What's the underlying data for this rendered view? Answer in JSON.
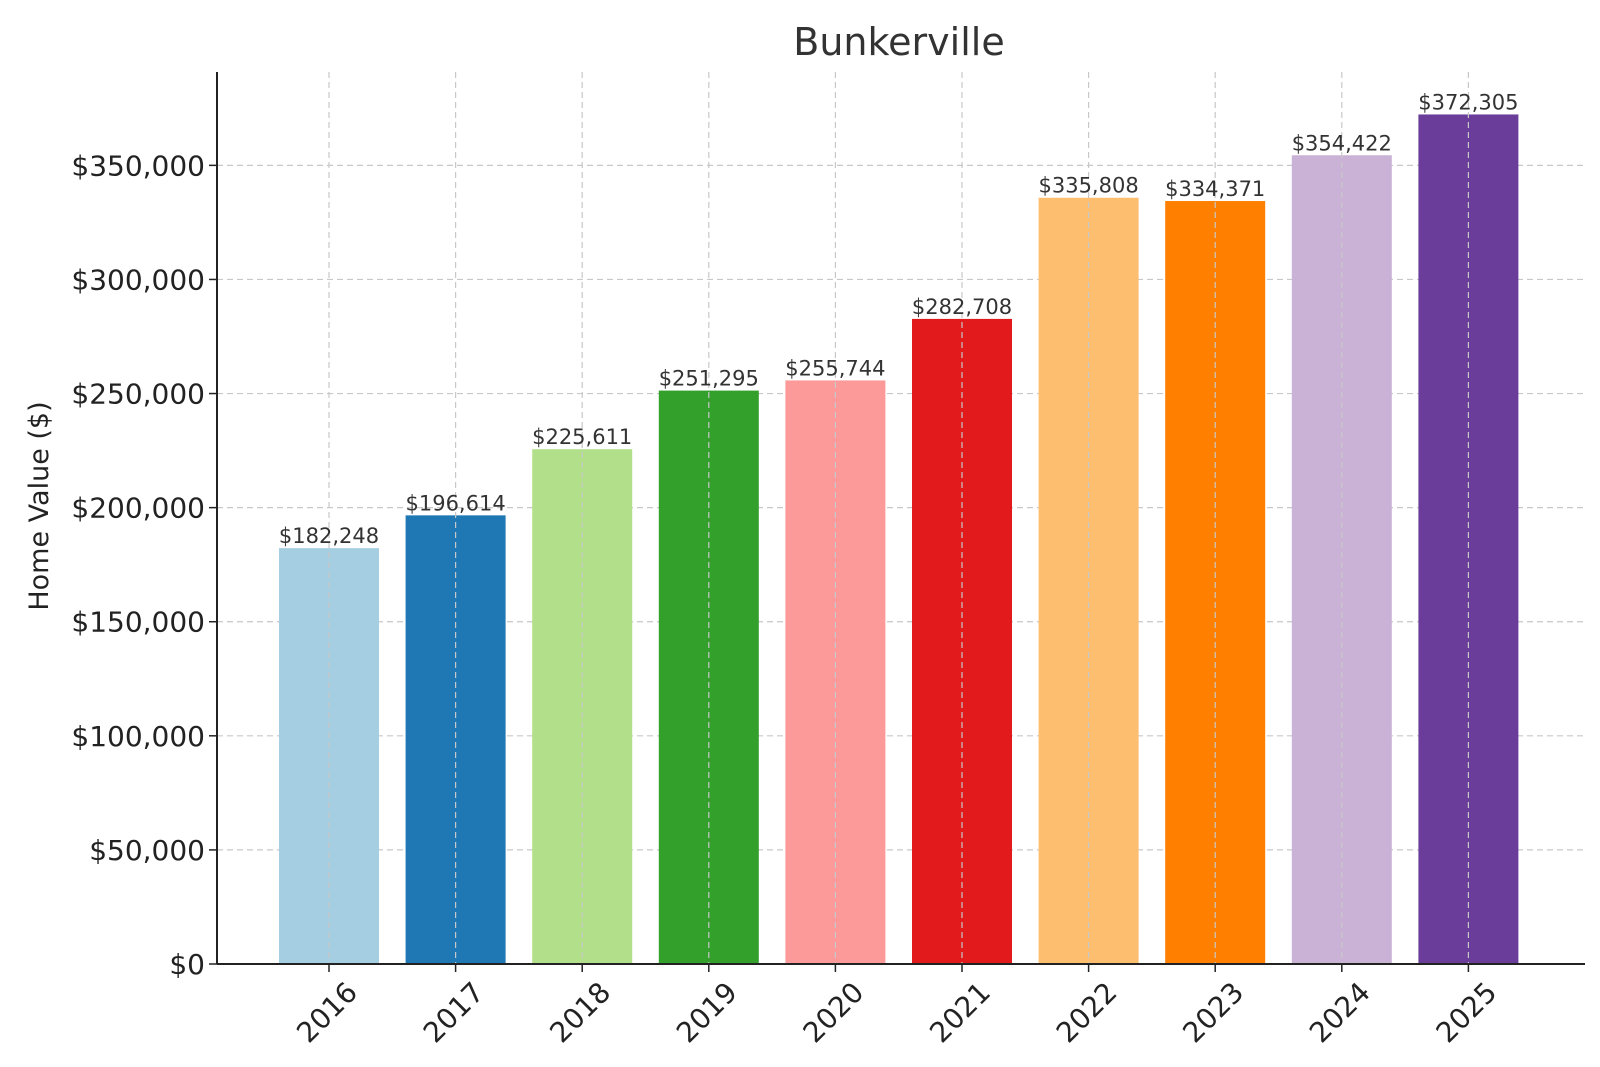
{
  "chart_data": {
    "type": "bar",
    "title": "Bunkerville",
    "xlabel": "",
    "ylabel": "Home Value ($)",
    "categories": [
      "2016",
      "2017",
      "2018",
      "2019",
      "2020",
      "2021",
      "2022",
      "2023",
      "2024",
      "2025"
    ],
    "values": [
      182248,
      196614,
      225611,
      251295,
      255744,
      282708,
      335808,
      334371,
      354422,
      372305
    ],
    "value_labels": [
      "$182,248",
      "$196,614",
      "$225,611",
      "$251,295",
      "$255,744",
      "$282,708",
      "$335,808",
      "$334,371",
      "$354,422",
      "$372,305"
    ],
    "bar_colors": [
      "#a6cee3",
      "#1f78b4",
      "#b2df8a",
      "#33a02c",
      "#fb9a99",
      "#e31a1c",
      "#fdbf6f",
      "#ff7f00",
      "#cab2d6",
      "#6a3d9a"
    ],
    "yticks": [
      0,
      50000,
      100000,
      150000,
      200000,
      250000,
      300000,
      350000
    ],
    "ytick_labels": [
      "$0",
      "$50,000",
      "$100,000",
      "$150,000",
      "$200,000",
      "$250,000",
      "$300,000",
      "$350,000"
    ],
    "ylim": [
      0,
      390914
    ],
    "grid": true,
    "legend": "none",
    "x_tick_rotation_deg": 45
  }
}
